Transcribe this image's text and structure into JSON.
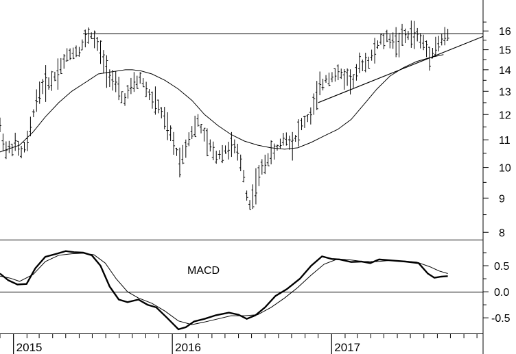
{
  "chart_data": [
    {
      "type": "ohlc",
      "title": "",
      "ylabel": "",
      "y_scale": "log",
      "ylim": [
        7.8,
        17.8
      ],
      "y_ticks": [
        "8",
        "9",
        "10",
        "11",
        "12",
        "13",
        "14",
        "15",
        "16"
      ],
      "x_tick_labels": [
        "2015",
        "2016",
        "2017"
      ],
      "x_range": [
        "2014-12-01",
        "2017-12-15"
      ],
      "grid": false,
      "price_path": [
        [
          "2014-12-01",
          11.5
        ],
        [
          "2014-12-15",
          10.6
        ],
        [
          "2015-01-05",
          10.8
        ],
        [
          "2015-01-20",
          10.5
        ],
        [
          "2015-02-05",
          11.0
        ],
        [
          "2015-02-20",
          12.5
        ],
        [
          "2015-03-10",
          13.3
        ],
        [
          "2015-03-31",
          13.5
        ],
        [
          "2015-04-20",
          14.2
        ],
        [
          "2015-05-10",
          14.8
        ],
        [
          "2015-06-01",
          15.0
        ],
        [
          "2015-06-15",
          15.5
        ],
        [
          "2015-06-25",
          15.9
        ],
        [
          "2015-07-10",
          15.4
        ],
        [
          "2015-07-31",
          14.2
        ],
        [
          "2015-08-20",
          13.4
        ],
        [
          "2015-09-10",
          12.6
        ],
        [
          "2015-10-01",
          13.2
        ],
        [
          "2015-10-20",
          13.6
        ],
        [
          "2015-11-10",
          12.8
        ],
        [
          "2015-12-01",
          12.3
        ],
        [
          "2016-01-01",
          11.0
        ],
        [
          "2016-01-20",
          10.2
        ],
        [
          "2016-02-10",
          11.2
        ],
        [
          "2016-03-01",
          11.7
        ],
        [
          "2016-03-20",
          10.9
        ],
        [
          "2016-04-10",
          10.4
        ],
        [
          "2016-05-01",
          10.6
        ],
        [
          "2016-05-20",
          10.8
        ],
        [
          "2016-06-10",
          10.0
        ],
        [
          "2016-06-25",
          8.7
        ],
        [
          "2016-07-15",
          9.6
        ],
        [
          "2016-08-05",
          10.3
        ],
        [
          "2016-08-25",
          10.6
        ],
        [
          "2016-09-15",
          11.1
        ],
        [
          "2016-10-05",
          10.9
        ],
        [
          "2016-10-25",
          11.6
        ],
        [
          "2016-11-15",
          12.0
        ],
        [
          "2016-12-01",
          13.0
        ],
        [
          "2016-12-20",
          13.6
        ],
        [
          "2017-01-10",
          13.8
        ],
        [
          "2017-01-31",
          13.7
        ],
        [
          "2017-02-20",
          13.5
        ],
        [
          "2017-03-10",
          14.3
        ],
        [
          "2017-03-31",
          14.5
        ],
        [
          "2017-04-20",
          15.4
        ],
        [
          "2017-05-10",
          15.6
        ],
        [
          "2017-06-01",
          15.4
        ],
        [
          "2017-06-20",
          15.7
        ],
        [
          "2017-07-10",
          15.9
        ],
        [
          "2017-07-31",
          15.3
        ],
        [
          "2017-08-15",
          14.8
        ],
        [
          "2017-08-31",
          15.2
        ],
        [
          "2017-09-15",
          15.6
        ],
        [
          "2017-09-25",
          15.7
        ]
      ],
      "moving_average": [
        [
          "2014-12-01",
          10.55
        ],
        [
          "2015-01-15",
          10.8
        ],
        [
          "2015-02-15",
          11.3
        ],
        [
          "2015-03-15",
          11.9
        ],
        [
          "2015-04-15",
          12.5
        ],
        [
          "2015-05-15",
          13.0
        ],
        [
          "2015-06-15",
          13.4
        ],
        [
          "2015-07-15",
          13.8
        ],
        [
          "2015-08-15",
          13.9
        ],
        [
          "2015-09-15",
          14.0
        ],
        [
          "2015-10-01",
          14.0
        ],
        [
          "2015-10-20",
          13.95
        ],
        [
          "2015-11-15",
          13.8
        ],
        [
          "2015-12-15",
          13.5
        ],
        [
          "2016-01-15",
          13.1
        ],
        [
          "2016-02-15",
          12.6
        ],
        [
          "2016-03-15",
          12.0
        ],
        [
          "2016-04-15",
          11.55
        ],
        [
          "2016-05-15",
          11.2
        ],
        [
          "2016-06-15",
          10.95
        ],
        [
          "2016-07-15",
          10.8
        ],
        [
          "2016-08-15",
          10.7
        ],
        [
          "2016-09-15",
          10.65
        ],
        [
          "2016-10-15",
          10.7
        ],
        [
          "2016-11-15",
          10.9
        ],
        [
          "2016-12-15",
          11.15
        ],
        [
          "2017-01-15",
          11.4
        ],
        [
          "2017-02-15",
          11.8
        ],
        [
          "2017-03-15",
          12.4
        ],
        [
          "2017-04-15",
          13.1
        ],
        [
          "2017-05-15",
          13.7
        ],
        [
          "2017-06-15",
          14.1
        ],
        [
          "2017-07-15",
          14.4
        ],
        [
          "2017-08-15",
          14.6
        ],
        [
          "2017-09-15",
          14.75
        ]
      ],
      "resistance_line": {
        "from": [
          "2015-06-10",
          15.85
        ],
        "to": [
          "2017-12-15",
          15.85
        ]
      },
      "trend_line": {
        "from": [
          "2016-12-01",
          12.5
        ],
        "to": [
          "2017-12-15",
          15.7
        ]
      }
    },
    {
      "type": "line",
      "label": "MACD",
      "ylim": [
        -0.8,
        1.0
      ],
      "y_ticks": [
        "-0.5",
        "0.0",
        "0.5"
      ],
      "zero_line": true,
      "series": [
        {
          "style": "thick",
          "points": [
            [
              "2014-12-01",
              0.35
            ],
            [
              "2014-12-20",
              0.22
            ],
            [
              "2015-01-10",
              0.14
            ],
            [
              "2015-01-31",
              0.15
            ],
            [
              "2015-02-20",
              0.45
            ],
            [
              "2015-03-15",
              0.67
            ],
            [
              "2015-04-10",
              0.73
            ],
            [
              "2015-05-01",
              0.78
            ],
            [
              "2015-05-20",
              0.76
            ],
            [
              "2015-06-10",
              0.75
            ],
            [
              "2015-06-30",
              0.7
            ],
            [
              "2015-07-20",
              0.5
            ],
            [
              "2015-08-10",
              0.1
            ],
            [
              "2015-08-31",
              -0.15
            ],
            [
              "2015-09-20",
              -0.2
            ],
            [
              "2015-10-15",
              -0.15
            ],
            [
              "2015-11-05",
              -0.25
            ],
            [
              "2015-11-25",
              -0.3
            ],
            [
              "2015-12-20",
              -0.5
            ],
            [
              "2016-01-15",
              -0.72
            ],
            [
              "2016-02-01",
              -0.68
            ],
            [
              "2016-02-20",
              -0.57
            ],
            [
              "2016-03-15",
              -0.52
            ],
            [
              "2016-04-10",
              -0.45
            ],
            [
              "2016-05-10",
              -0.4
            ],
            [
              "2016-06-01",
              -0.44
            ],
            [
              "2016-06-20",
              -0.52
            ],
            [
              "2016-07-10",
              -0.45
            ],
            [
              "2016-08-01",
              -0.3
            ],
            [
              "2016-08-25",
              -0.08
            ],
            [
              "2016-09-20",
              0.05
            ],
            [
              "2016-10-20",
              0.25
            ],
            [
              "2016-11-15",
              0.5
            ],
            [
              "2016-12-10",
              0.68
            ],
            [
              "2017-01-01",
              0.63
            ],
            [
              "2017-01-20",
              0.62
            ],
            [
              "2017-02-15",
              0.57
            ],
            [
              "2017-03-10",
              0.58
            ],
            [
              "2017-03-31",
              0.55
            ],
            [
              "2017-04-20",
              0.62
            ],
            [
              "2017-05-20",
              0.6
            ],
            [
              "2017-06-20",
              0.58
            ],
            [
              "2017-07-20",
              0.55
            ],
            [
              "2017-08-10",
              0.35
            ],
            [
              "2017-08-25",
              0.27
            ],
            [
              "2017-09-10",
              0.29
            ],
            [
              "2017-09-25",
              0.3
            ]
          ]
        },
        {
          "style": "thin",
          "points": [
            [
              "2014-12-01",
              0.3
            ],
            [
              "2014-12-25",
              0.26
            ],
            [
              "2015-01-15",
              0.2
            ],
            [
              "2015-02-15",
              0.33
            ],
            [
              "2015-03-15",
              0.58
            ],
            [
              "2015-04-15",
              0.7
            ],
            [
              "2015-05-15",
              0.73
            ],
            [
              "2015-06-10",
              0.74
            ],
            [
              "2015-07-05",
              0.71
            ],
            [
              "2015-07-31",
              0.55
            ],
            [
              "2015-08-25",
              0.25
            ],
            [
              "2015-09-20",
              0.0
            ],
            [
              "2015-10-15",
              -0.12
            ],
            [
              "2015-11-15",
              -0.22
            ],
            [
              "2015-12-15",
              -0.37
            ],
            [
              "2016-01-15",
              -0.56
            ],
            [
              "2016-02-15",
              -0.63
            ],
            [
              "2016-03-15",
              -0.58
            ],
            [
              "2016-04-15",
              -0.52
            ],
            [
              "2016-05-15",
              -0.46
            ],
            [
              "2016-06-15",
              -0.46
            ],
            [
              "2016-07-15",
              -0.44
            ],
            [
              "2016-08-15",
              -0.3
            ],
            [
              "2016-09-15",
              -0.12
            ],
            [
              "2016-10-15",
              0.08
            ],
            [
              "2016-11-15",
              0.32
            ],
            [
              "2016-12-15",
              0.53
            ],
            [
              "2017-01-15",
              0.63
            ],
            [
              "2017-02-15",
              0.61
            ],
            [
              "2017-03-15",
              0.58
            ],
            [
              "2017-04-15",
              0.58
            ],
            [
              "2017-05-15",
              0.6
            ],
            [
              "2017-06-15",
              0.59
            ],
            [
              "2017-07-15",
              0.57
            ],
            [
              "2017-08-15",
              0.48
            ],
            [
              "2017-09-05",
              0.4
            ],
            [
              "2017-09-25",
              0.35
            ]
          ]
        }
      ]
    }
  ]
}
